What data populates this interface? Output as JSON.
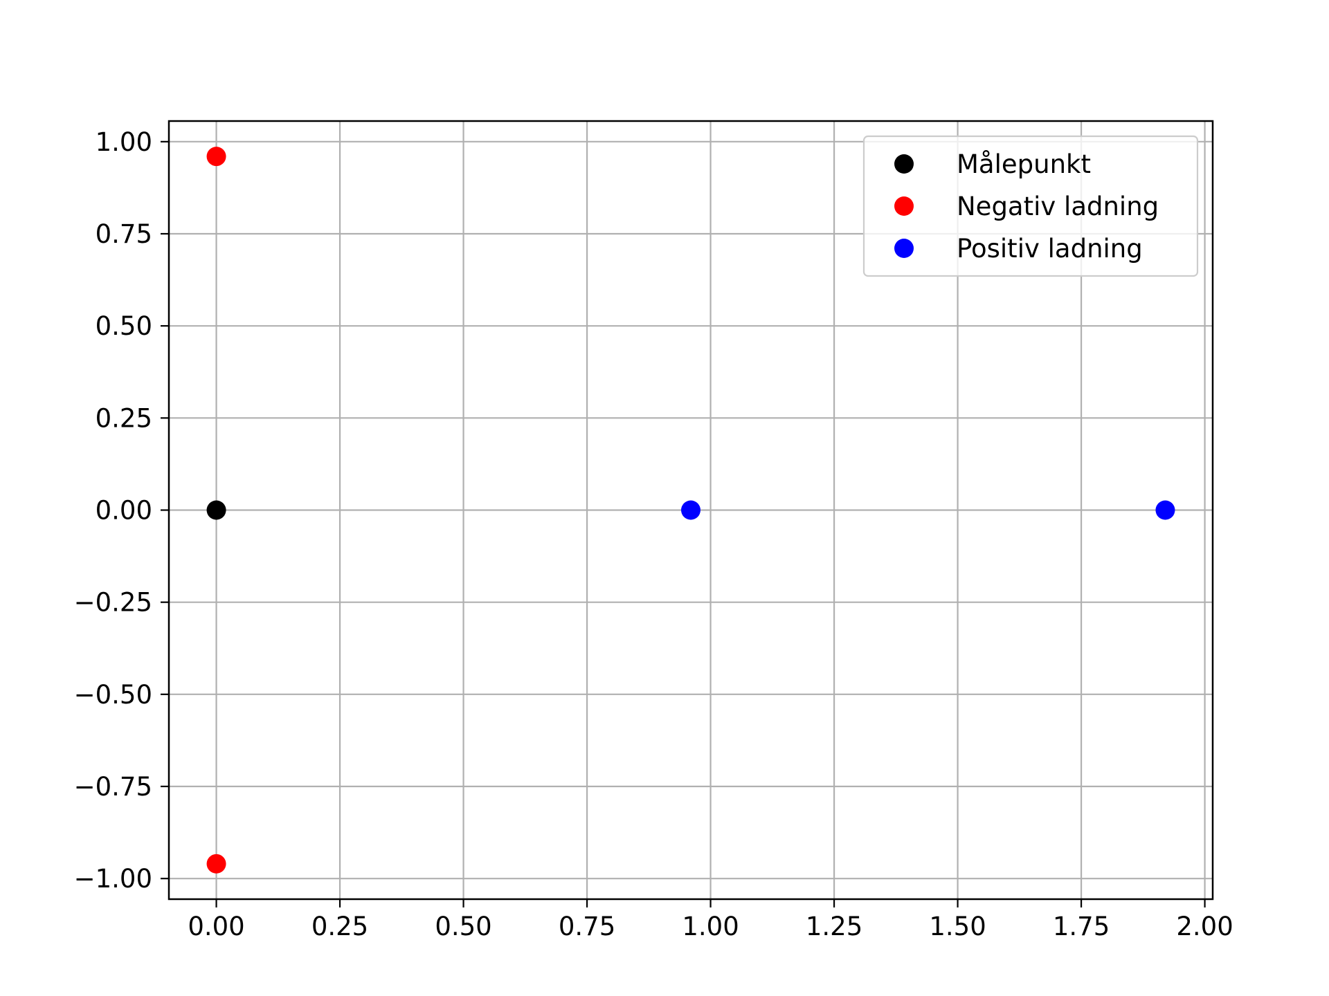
{
  "chart_data": {
    "type": "scatter",
    "title": "",
    "xlabel": "",
    "ylabel": "",
    "xlim": [
      -0.096,
      2.016
    ],
    "ylim": [
      -1.056,
      1.056
    ],
    "xticks": [
      0.0,
      0.25,
      0.5,
      0.75,
      1.0,
      1.25,
      1.5,
      1.75,
      2.0
    ],
    "xtick_labels": [
      "0.00",
      "0.25",
      "0.50",
      "0.75",
      "1.00",
      "1.25",
      "1.50",
      "1.75",
      "2.00"
    ],
    "yticks": [
      1.0,
      0.75,
      0.5,
      0.25,
      0.0,
      -0.25,
      -0.5,
      -0.75,
      -1.0
    ],
    "ytick_labels": [
      "1.00",
      "0.75",
      "0.50",
      "0.25",
      "0.00",
      "−0.25",
      "−0.50",
      "−0.75",
      "−1.00"
    ],
    "grid": true,
    "legend_position": "top-right",
    "series": [
      {
        "name": "Målepunkt",
        "color": "#000000",
        "points": [
          [
            0.0,
            0.0
          ]
        ]
      },
      {
        "name": "Negativ ladning",
        "color": "#ff0000",
        "points": [
          [
            0.0,
            0.96
          ],
          [
            0.0,
            -0.96
          ]
        ]
      },
      {
        "name": "Positiv ladning",
        "color": "#0000ff",
        "points": [
          [
            0.96,
            0.0
          ],
          [
            1.92,
            0.0
          ]
        ]
      }
    ]
  }
}
